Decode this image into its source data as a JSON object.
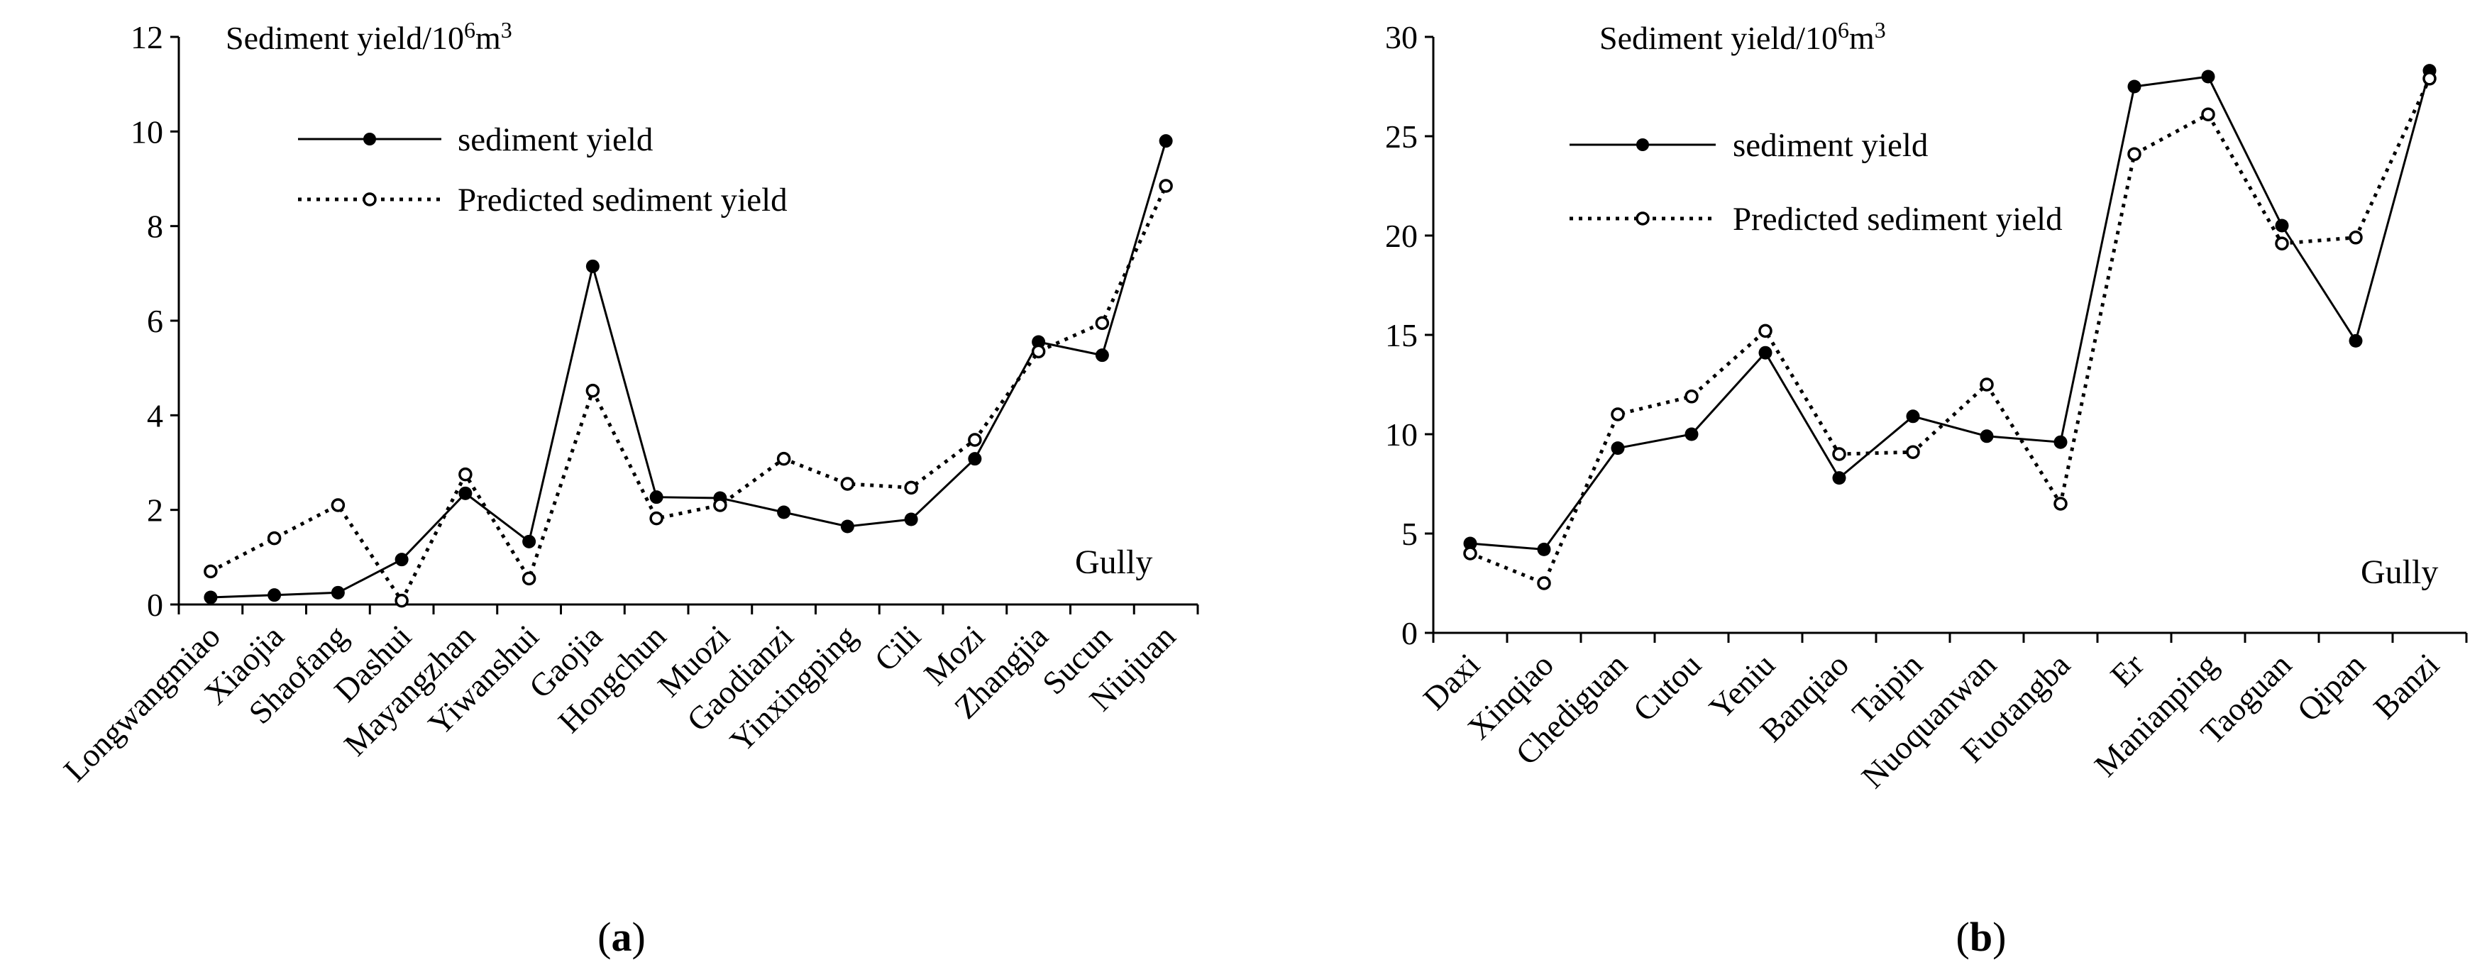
{
  "colors": {
    "line": "#000000",
    "background": "#ffffff"
  },
  "chart_data": [
    {
      "panel": "(a)",
      "panel_open": "(",
      "panel_letter": "a",
      "panel_close": ")",
      "type": "line",
      "ylabel_main": "Sediment yield/10",
      "ylabel_sup": "6",
      "ylabel_unit": "m",
      "ylabel_sup2": "3",
      "annotation": "Gully",
      "ylim": [
        0,
        12
      ],
      "yticks": [
        0,
        2,
        4,
        6,
        8,
        10,
        12
      ],
      "categories": [
        "Longwangmiao",
        "Xiaojia",
        "Shaofang",
        "Dashui",
        "Mayangzhan",
        "Yiwanshui",
        "Gaojia",
        "Hongchun",
        "Muozi",
        "Gaodianzi",
        "Yinxingping",
        "Cili",
        "Mozi",
        "Zhangjia",
        "Sucun",
        "Niujuan"
      ],
      "series": [
        {
          "name": "sediment yield",
          "style": "solid",
          "values": [
            0.15,
            0.2,
            0.25,
            0.95,
            2.35,
            1.33,
            7.15,
            2.27,
            2.25,
            1.95,
            1.65,
            1.8,
            3.08,
            5.55,
            5.27,
            9.8
          ]
        },
        {
          "name": "Predicted sediment yield",
          "style": "dotted",
          "values": [
            0.7,
            1.4,
            2.1,
            0.08,
            2.75,
            0.55,
            4.52,
            1.82,
            2.1,
            3.08,
            2.55,
            2.47,
            3.48,
            5.35,
            5.95,
            8.85
          ]
        }
      ]
    },
    {
      "panel": "(b)",
      "panel_open": "(",
      "panel_letter": "b",
      "panel_close": ")",
      "type": "line",
      "ylabel_main": "Sediment yield/10",
      "ylabel_sup": "6",
      "ylabel_unit": "m",
      "ylabel_sup2": "3",
      "annotation": "Gully",
      "ylim": [
        0,
        30
      ],
      "yticks": [
        0,
        5,
        10,
        15,
        20,
        25,
        30
      ],
      "categories": [
        "Daxi",
        "Xinqiao",
        "Chediguan",
        "Cutou",
        "Yeniu",
        "Banqiao",
        "Taipin",
        "Nuoquanwan",
        "Fuotangba",
        "Er",
        "Manianping",
        "Taoguan",
        "Qipan",
        "Banzi"
      ],
      "series": [
        {
          "name": "sediment yield",
          "style": "solid",
          "values": [
            4.5,
            4.2,
            9.3,
            10.0,
            14.1,
            7.8,
            10.9,
            9.9,
            9.6,
            27.5,
            28.0,
            20.5,
            14.7,
            28.3
          ]
        },
        {
          "name": "Predicted sediment yield",
          "style": "dotted",
          "values": [
            4.0,
            2.5,
            11.0,
            11.9,
            15.2,
            9.0,
            9.1,
            12.5,
            6.5,
            24.1,
            26.1,
            19.6,
            19.9,
            27.9
          ]
        }
      ]
    }
  ]
}
